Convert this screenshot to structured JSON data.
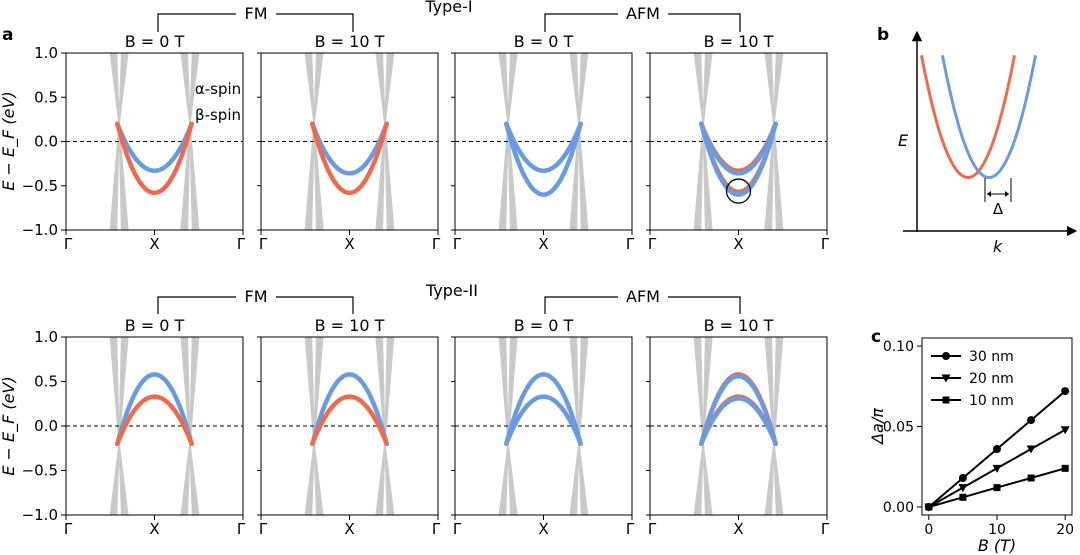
{
  "panel_labels": {
    "a": "a",
    "b": "b",
    "c": "c"
  },
  "colors": {
    "alpha": "#ef6a4d",
    "beta": "#6a9be0",
    "cone": "#c9c9c9",
    "line": "#000000"
  },
  "groups": [
    {
      "type_label": "Type-I",
      "fm_label": "FM",
      "afm_label": "AFM",
      "ylabel": "E − E_F (eV)",
      "yticks": [
        "1.0",
        "0.5",
        "0.0",
        "−0.5",
        "−1.0"
      ],
      "xticks": [
        "Γ",
        "X",
        "Γ"
      ],
      "legend": {
        "alpha": "α-spin",
        "beta": "β-spin"
      },
      "panels": [
        {
          "title": "B = 0 T",
          "kind": "fm",
          "dirac_energy": 0.2,
          "bands": [
            {
              "spin": "beta",
              "min": -0.33
            },
            {
              "spin": "alpha",
              "min": -0.58
            }
          ]
        },
        {
          "title": "B = 10 T",
          "kind": "fm",
          "dirac_energy": 0.2,
          "bands": [
            {
              "spin": "beta",
              "min": -0.36
            },
            {
              "spin": "alpha",
              "min": -0.58
            }
          ]
        },
        {
          "title": "B = 0 T",
          "kind": "afm",
          "dirac_energy": 0.2,
          "bands": [
            {
              "spin": "beta",
              "min": -0.33
            },
            {
              "spin": "beta",
              "min": -0.6
            }
          ]
        },
        {
          "title": "B = 10 T",
          "kind": "afm",
          "dirac_energy": 0.2,
          "bands": [
            {
              "spin": "alpha",
              "min": -0.33
            },
            {
              "spin": "beta",
              "min": -0.36
            },
            {
              "spin": "alpha",
              "min": -0.57
            },
            {
              "spin": "beta",
              "min": -0.6
            }
          ],
          "circle": {
            "k": 0.5,
            "e": -0.56
          }
        }
      ]
    },
    {
      "type_label": "Type-II",
      "fm_label": "FM",
      "afm_label": "AFM",
      "ylabel": "E − E_F (eV)",
      "yticks": [
        "1.0",
        "0.5",
        "0.0",
        "−0.5",
        "−1.0"
      ],
      "xticks": [
        "Γ",
        "X",
        "Γ"
      ],
      "panels": [
        {
          "title": "B = 0 T",
          "kind": "fm",
          "dirac_energy": -0.2,
          "bands": [
            {
              "spin": "beta",
              "max": 0.58
            },
            {
              "spin": "alpha",
              "max": 0.33
            }
          ]
        },
        {
          "title": "B = 10 T",
          "kind": "fm",
          "dirac_energy": -0.2,
          "bands": [
            {
              "spin": "beta",
              "max": 0.58
            },
            {
              "spin": "alpha",
              "max": 0.33
            }
          ]
        },
        {
          "title": "B = 0 T",
          "kind": "afm",
          "dirac_energy": -0.2,
          "bands": [
            {
              "spin": "beta",
              "max": 0.58
            },
            {
              "spin": "beta",
              "max": 0.33
            }
          ]
        },
        {
          "title": "B = 10 T",
          "kind": "afm",
          "dirac_energy": -0.2,
          "bands": [
            {
              "spin": "alpha",
              "max": 0.58
            },
            {
              "spin": "beta",
              "max": 0.56
            },
            {
              "spin": "alpha",
              "max": 0.33
            },
            {
              "spin": "beta",
              "max": 0.31
            }
          ]
        }
      ]
    }
  ],
  "schematic": {
    "ylabel": "E",
    "xlabel": "k",
    "delta_label": "Δ",
    "alpha_center": 0.34,
    "beta_center": 0.48
  },
  "chart_data": {
    "type": "line",
    "title": "",
    "xlabel": "B (T)",
    "ylabel": "Δa/π",
    "xlim": [
      -1,
      21
    ],
    "ylim": [
      -0.005,
      0.105
    ],
    "xticks": [
      0,
      10,
      20
    ],
    "yticks": [
      0.0,
      0.05,
      0.1
    ],
    "ytick_labels": [
      "0.00",
      "0.05",
      "0.10"
    ],
    "xtick_labels": [
      "0",
      "10",
      "20"
    ],
    "legend_position": "top-left",
    "series": [
      {
        "name": "30 nm",
        "marker": "circle",
        "x": [
          0,
          5,
          10,
          15,
          20
        ],
        "values": [
          0.0,
          0.018,
          0.036,
          0.054,
          0.072
        ]
      },
      {
        "name": "20 nm",
        "marker": "triangle-down",
        "x": [
          0,
          5,
          10,
          15,
          20
        ],
        "values": [
          0.0,
          0.012,
          0.024,
          0.036,
          0.048
        ]
      },
      {
        "name": "10 nm",
        "marker": "square",
        "x": [
          0,
          5,
          10,
          15,
          20
        ],
        "values": [
          0.0,
          0.006,
          0.012,
          0.018,
          0.024
        ]
      }
    ]
  }
}
